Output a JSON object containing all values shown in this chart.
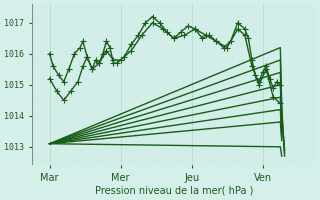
{
  "bg_color": "#d5f0eb",
  "grid_color_major": "#b8ddd5",
  "grid_color_minor": "#cceae4",
  "line_color": "#1a5c1a",
  "marker": "+",
  "markersize": 4,
  "linewidth": 1.0,
  "xlabel": "Pression niveau de la mer( hPa )",
  "xtick_labels": [
    "Mar",
    "Mer",
    "Jeu",
    "Ven"
  ],
  "ylim": [
    1012.4,
    1017.6
  ],
  "yticks": [
    1013,
    1014,
    1015,
    1016,
    1017
  ],
  "xlim": [
    0.0,
    4.0
  ],
  "xtick_positions": [
    0.25,
    1.25,
    2.25,
    3.25
  ],
  "marked_series": [
    [
      0.25,
      1016.0,
      0.3,
      1015.6,
      0.38,
      1015.3,
      0.45,
      1015.1,
      0.52,
      1015.5,
      0.6,
      1016.0,
      0.68,
      1016.2,
      0.72,
      1016.4,
      0.78,
      1015.9,
      0.85,
      1015.5,
      0.9,
      1015.8,
      0.95,
      1015.7,
      1.0,
      1016.0,
      1.05,
      1016.4,
      1.1,
      1016.2,
      1.15,
      1015.7,
      1.2,
      1015.7,
      1.3,
      1015.9,
      1.4,
      1016.3,
      1.5,
      1016.6,
      1.6,
      1017.0,
      1.7,
      1017.2,
      1.8,
      1017.0,
      1.9,
      1016.7,
      2.0,
      1016.5,
      2.1,
      1016.7,
      2.2,
      1016.9,
      2.3,
      1016.8,
      2.4,
      1016.5,
      2.5,
      1016.6,
      2.6,
      1016.4,
      2.7,
      1016.2,
      2.8,
      1016.4,
      2.9,
      1017.0,
      3.0,
      1016.8,
      3.05,
      1016.5,
      3.1,
      1015.8,
      3.15,
      1015.3,
      3.2,
      1015.1,
      3.25,
      1015.4,
      3.3,
      1015.6,
      3.35,
      1015.2,
      3.4,
      1014.9,
      3.45,
      1015.1,
      3.5,
      1015.0
    ],
    [
      0.25,
      1015.2,
      0.35,
      1014.8,
      0.45,
      1014.5,
      0.55,
      1014.8,
      0.65,
      1015.1,
      0.72,
      1015.6,
      0.78,
      1015.9,
      0.85,
      1015.5,
      0.95,
      1015.7,
      1.05,
      1016.1,
      1.15,
      1015.8,
      1.25,
      1015.8,
      1.4,
      1016.1,
      1.55,
      1016.6,
      1.7,
      1017.0,
      1.85,
      1016.8,
      2.0,
      1016.5,
      2.15,
      1016.6,
      2.3,
      1016.8,
      2.45,
      1016.6,
      2.6,
      1016.4,
      2.75,
      1016.2,
      2.9,
      1016.8,
      3.0,
      1016.6,
      3.1,
      1015.6,
      3.2,
      1015.0,
      3.3,
      1015.5,
      3.4,
      1014.6,
      3.5,
      1014.4
    ]
  ],
  "fan_series": [
    [
      0.25,
      1013.1,
      3.5,
      1016.2,
      3.52,
      1014.3,
      3.56,
      1012.7
    ],
    [
      0.25,
      1013.1,
      3.5,
      1015.8,
      3.52,
      1014.1,
      3.56,
      1012.8
    ],
    [
      0.25,
      1013.1,
      3.5,
      1015.4,
      3.52,
      1013.9,
      3.56,
      1012.9
    ],
    [
      0.25,
      1013.1,
      3.5,
      1015.0,
      3.52,
      1013.7
    ],
    [
      0.25,
      1013.1,
      3.5,
      1014.6,
      3.52,
      1013.5
    ],
    [
      0.25,
      1013.1,
      3.5,
      1014.2,
      3.52,
      1013.3
    ],
    [
      0.25,
      1013.1,
      3.5,
      1013.8,
      3.52,
      1013.2
    ],
    [
      0.25,
      1013.1,
      3.5,
      1013.0,
      3.52,
      1012.7
    ]
  ]
}
